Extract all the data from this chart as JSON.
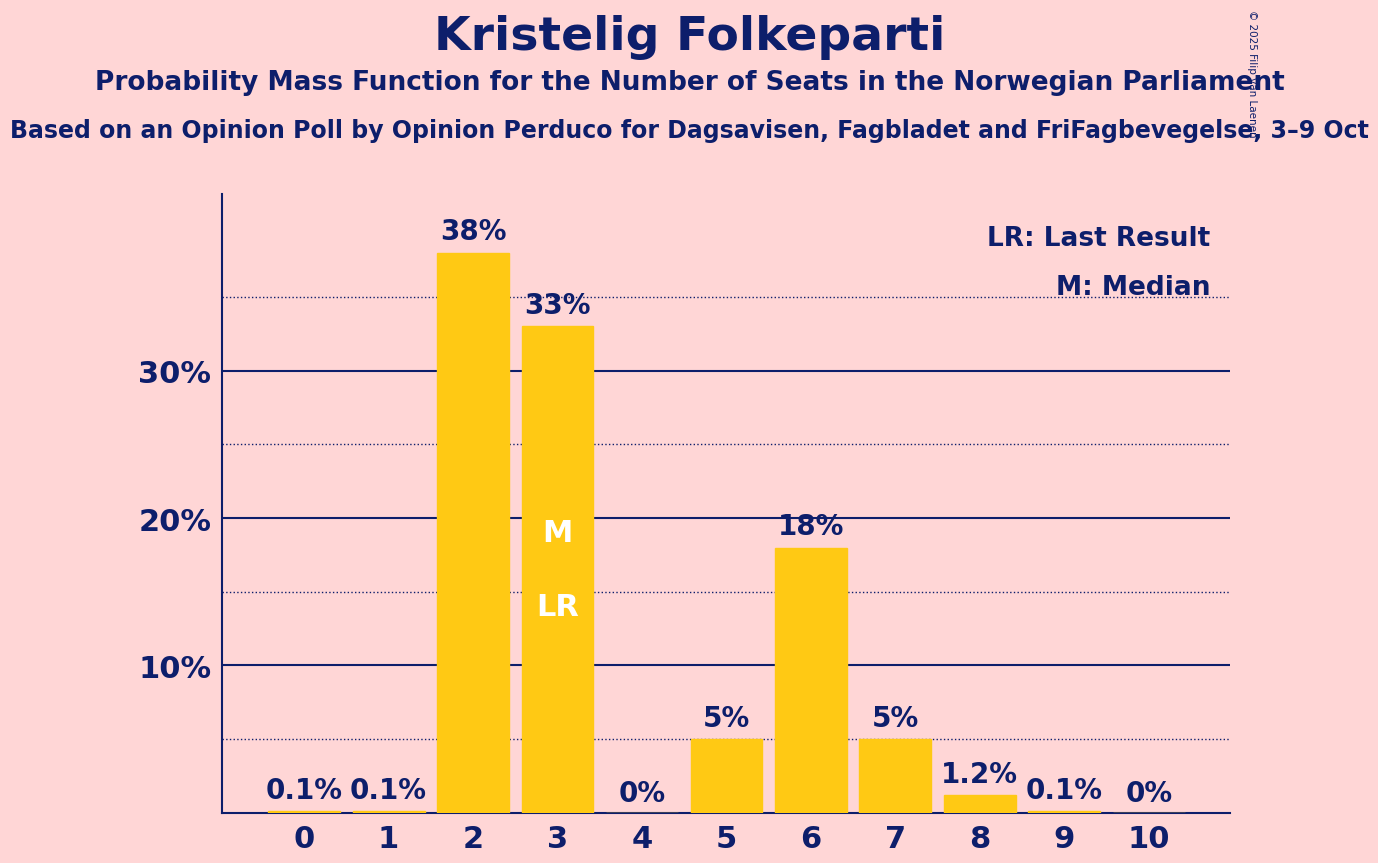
{
  "title": "Kristelig Folkeparti",
  "subtitle": "Probability Mass Function for the Number of Seats in the Norwegian Parliament",
  "sub_subtitle": "Based on an Opinion Poll by Opinion Perduco for Dagsavisen, Fagbladet and FriFagbevegelse, 3–9 Oct",
  "copyright": "© 2025 Filip van Laenen",
  "categories": [
    0,
    1,
    2,
    3,
    4,
    5,
    6,
    7,
    8,
    9,
    10
  ],
  "values": [
    0.1,
    0.1,
    38,
    33,
    0,
    5,
    18,
    5,
    1.2,
    0.1,
    0
  ],
  "value_labels": [
    "0.1%",
    "0.1%",
    "38%",
    "33%",
    "0%",
    "5%",
    "18%",
    "5%",
    "1.2%",
    "0.1%",
    "0%"
  ],
  "bar_color": "#FFC914",
  "background_color": "#FFD6D6",
  "text_color": "#0D1E6B",
  "title_fontsize": 34,
  "subtitle_fontsize": 19,
  "sub_subtitle_fontsize": 17,
  "axis_label_fontsize": 22,
  "bar_label_fontsize": 20,
  "legend_fontsize": 19,
  "ytick_labels": [
    "10%",
    "20%",
    "30%"
  ],
  "yticks_major": [
    10,
    20,
    30
  ],
  "yticks_minor": [
    5,
    15,
    25,
    35
  ],
  "ylim": [
    0,
    42
  ],
  "median_seat": 3,
  "last_result_seat": 3,
  "legend_lr": "LR: Last Result",
  "legend_m": "M: Median"
}
